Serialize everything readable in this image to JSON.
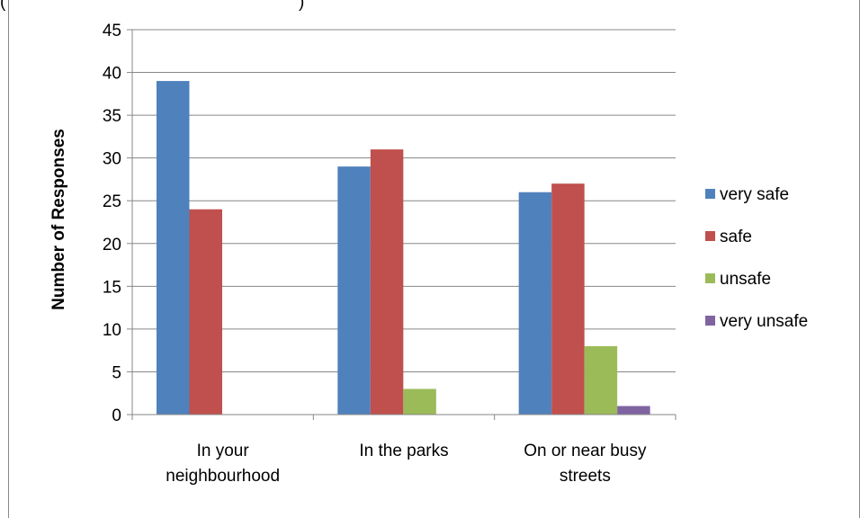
{
  "top_fragment_left": "(",
  "top_fragment_right": ")",
  "chart_data": {
    "type": "bar",
    "title": "",
    "xlabel": "",
    "ylabel": "Number of Responses",
    "ylim": [
      0,
      45
    ],
    "ytick_step": 5,
    "grid": true,
    "legend_position": "right",
    "categories": [
      [
        "In your",
        "neighbourhood"
      ],
      [
        "In the parks"
      ],
      [
        "On or near busy",
        "streets"
      ]
    ],
    "series": [
      {
        "name": "very safe",
        "color": "#4F81BD",
        "values": [
          39,
          29,
          26
        ]
      },
      {
        "name": "safe",
        "color": "#C0504D",
        "values": [
          24,
          31,
          27
        ]
      },
      {
        "name": "unsafe",
        "color": "#9BBB59",
        "values": [
          0,
          3,
          8
        ]
      },
      {
        "name": "very unsafe",
        "color": "#8064A2",
        "values": [
          0,
          0,
          1
        ]
      }
    ]
  }
}
